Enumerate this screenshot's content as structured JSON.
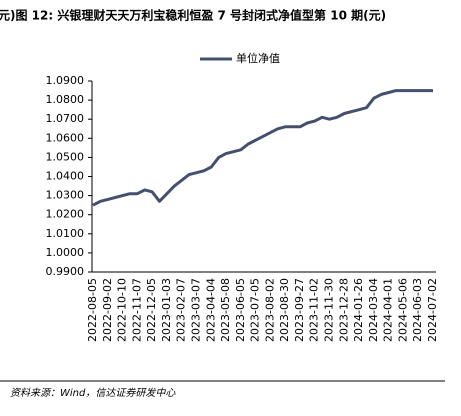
{
  "chart_data": {
    "type": "line",
    "title": "元)图 12: 兴银理财天天万利宝稳利恒盈 7 号封闭式净值型第 10 期(元)",
    "source": "资料来源：Wind，信达证券研发中心",
    "categories": [
      "2022-08-05",
      null,
      "2022-09-02",
      null,
      "2022-10-10",
      null,
      "2022-11-07",
      null,
      "2022-12-05",
      null,
      "2023-01-03",
      null,
      "2023-02-07",
      null,
      "2023-03-07",
      null,
      "2023-04-04",
      null,
      "2023-05-08",
      null,
      "2023-06-05",
      null,
      "2023-07-05",
      null,
      "2023-08-02",
      null,
      "2023-08-30",
      null,
      "2023-09-27",
      null,
      "2023-11-02",
      null,
      "2023-11-30",
      null,
      "2023-12-28",
      null,
      "2024-01-26",
      null,
      "2024-03-04",
      null,
      "2024-04-01",
      null,
      "2024-05-06",
      null,
      "2024-06-03",
      null,
      "2024-07-02"
    ],
    "series": [
      {
        "name": "单位净值",
        "color": "#44506e",
        "values": [
          1.025,
          1.027,
          1.028,
          1.029,
          1.03,
          1.031,
          1.031,
          1.033,
          1.032,
          1.027,
          1.031,
          1.035,
          1.038,
          1.041,
          1.042,
          1.043,
          1.045,
          1.05,
          1.052,
          1.053,
          1.054,
          1.057,
          1.059,
          1.061,
          1.063,
          1.065,
          1.066,
          1.066,
          1.066,
          1.068,
          1.069,
          1.071,
          1.07,
          1.071,
          1.073,
          1.074,
          1.075,
          1.076,
          1.081,
          1.083,
          1.084,
          1.085,
          1.085,
          1.085,
          1.085,
          1.085,
          1.085
        ]
      }
    ],
    "ylim": [
      0.99,
      1.09
    ],
    "yticks": [
      {
        "value": 0.99,
        "label": "0.9900"
      },
      {
        "value": 1.0,
        "label": "1.0000"
      },
      {
        "value": 1.01,
        "label": "1.0100"
      },
      {
        "value": 1.02,
        "label": "1.0200"
      },
      {
        "value": 1.03,
        "label": "1.0300"
      },
      {
        "value": 1.04,
        "label": "1.0400"
      },
      {
        "value": 1.05,
        "label": "1.0500"
      },
      {
        "value": 1.06,
        "label": "1.0600"
      },
      {
        "value": 1.07,
        "label": "1.0700"
      },
      {
        "value": 1.08,
        "label": "1.0800"
      },
      {
        "value": 1.09,
        "label": "1.0900"
      }
    ],
    "legend": "top"
  }
}
